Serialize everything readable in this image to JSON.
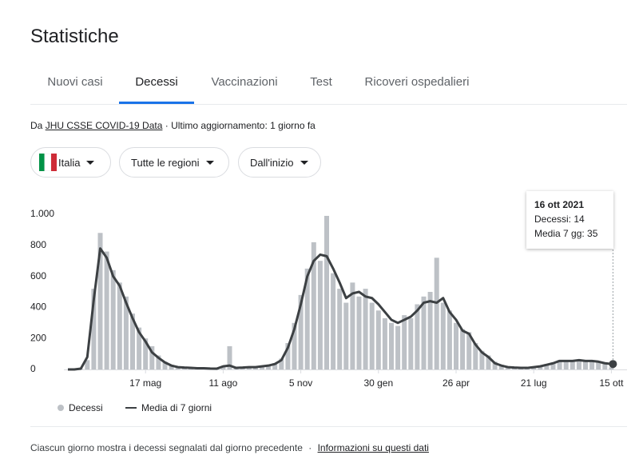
{
  "header": {
    "title": "Statistiche"
  },
  "tabs": [
    "Nuovi casi",
    "Decessi",
    "Vaccinazioni",
    "Test",
    "Ricoveri ospedalieri"
  ],
  "source": {
    "prefix": "Da",
    "link": "JHU CSSE COVID-19 Data",
    "updated": "· Ultimo aggiornamento: 1 giorno fa"
  },
  "filters": [
    "Italia",
    "Tutte le regioni",
    "Dall'inizio"
  ],
  "tooltip": {
    "date": "16 ott 2021",
    "line1": "Decessi: 14",
    "line2": "Media 7 gg: 35"
  },
  "chart_data": {
    "type": "bar-line",
    "categories": [
      null,
      null,
      null,
      null,
      null,
      null,
      null,
      null,
      null,
      null,
      null,
      null,
      "17 mag",
      null,
      null,
      null,
      null,
      null,
      null,
      null,
      null,
      null,
      null,
      null,
      "11 ago",
      null,
      null,
      null,
      null,
      null,
      null,
      null,
      null,
      null,
      null,
      null,
      "5 nov",
      null,
      null,
      null,
      null,
      null,
      null,
      null,
      null,
      null,
      null,
      null,
      "30 gen",
      null,
      null,
      null,
      null,
      null,
      null,
      null,
      null,
      null,
      null,
      null,
      "26 apr",
      null,
      null,
      null,
      null,
      null,
      null,
      null,
      null,
      null,
      null,
      null,
      "21 lug",
      null,
      null,
      null,
      null,
      null,
      null,
      null,
      null,
      null,
      null,
      null,
      "15 ott"
    ],
    "series": [
      {
        "name": "Decessi",
        "color": "#bdc1c6",
        "values": [
          0,
          0,
          3,
          60,
          520,
          880,
          760,
          640,
          560,
          470,
          360,
          270,
          200,
          150,
          90,
          50,
          30,
          18,
          14,
          10,
          9,
          8,
          7,
          6,
          15,
          150,
          12,
          14,
          18,
          16,
          22,
          28,
          40,
          70,
          170,
          300,
          480,
          650,
          820,
          700,
          990,
          620,
          520,
          430,
          560,
          470,
          520,
          430,
          380,
          330,
          300,
          280,
          350,
          330,
          420,
          470,
          500,
          720,
          430,
          380,
          300,
          260,
          240,
          170,
          120,
          90,
          50,
          30,
          18,
          14,
          12,
          11,
          18,
          22,
          35,
          45,
          60,
          58,
          50,
          65,
          58,
          52,
          48,
          38,
          14
        ]
      },
      {
        "name": "Media di 7 giorni",
        "color": "#3c4043",
        "values": [
          0,
          0,
          5,
          80,
          450,
          780,
          720,
          600,
          540,
          430,
          330,
          240,
          180,
          110,
          75,
          45,
          25,
          15,
          12,
          10,
          8,
          8,
          6,
          5,
          20,
          25,
          10,
          12,
          15,
          15,
          20,
          25,
          35,
          60,
          140,
          260,
          420,
          600,
          700,
          740,
          730,
          650,
          560,
          460,
          490,
          500,
          470,
          460,
          420,
          370,
          320,
          300,
          320,
          340,
          380,
          430,
          440,
          430,
          460,
          370,
          320,
          250,
          230,
          160,
          110,
          80,
          40,
          25,
          15,
          12,
          10,
          10,
          15,
          20,
          30,
          40,
          55,
          55,
          55,
          60,
          55,
          55,
          50,
          40,
          35
        ]
      }
    ],
    "ylim": [
      0,
      1000
    ],
    "yticks": [
      0,
      200,
      400,
      600,
      800,
      {
        "value": 1000,
        "label": "1.000"
      }
    ],
    "grid": false
  },
  "footer": {
    "note": "Ciascun giorno mostra i decessi segnalati dal giorno precedente",
    "sep": "·",
    "link": "Informazioni su questi dati"
  }
}
